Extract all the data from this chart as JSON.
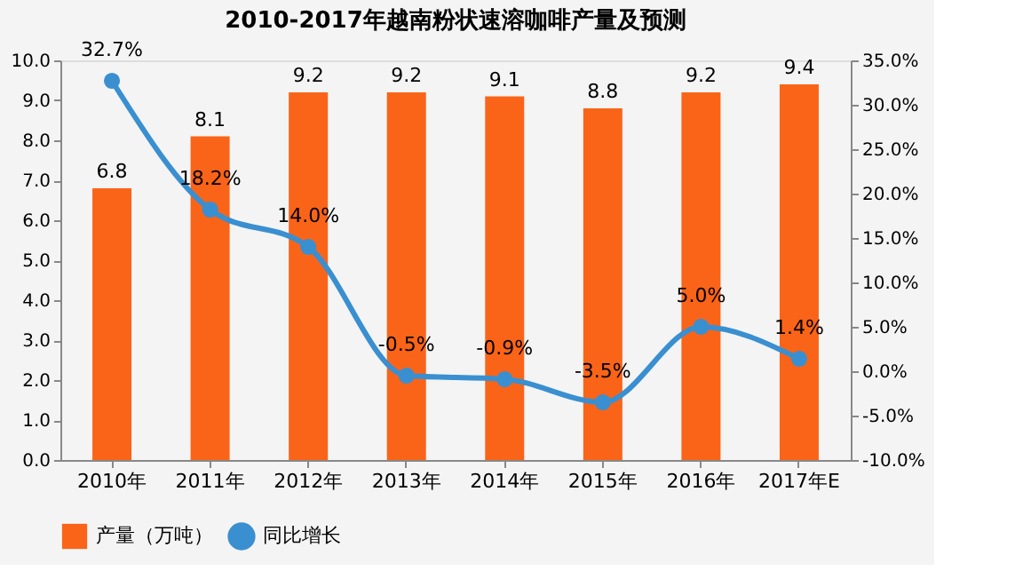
{
  "chart_data": {
    "type": "bar",
    "title": "2010-2017年越南粉状速溶咖啡产量及预测",
    "categories": [
      "2010年",
      "2011年",
      "2012年",
      "2013年",
      "2014年",
      "2015年",
      "2016年",
      "2017年E"
    ],
    "series": [
      {
        "name": "产量（万吨）",
        "color": "#fa6418",
        "values": [
          6.8,
          8.1,
          9.2,
          9.2,
          9.1,
          8.8,
          9.2,
          9.4
        ],
        "data_labels": true
      },
      {
        "name": "同比增长",
        "type": "line",
        "axis": "y2",
        "color": "#3a8fd0",
        "marker": "circle",
        "line_style": "solid",
        "values": [
          32.7,
          18.2,
          14.0,
          -0.5,
          -0.9,
          -3.5,
          5.0,
          1.4
        ],
        "value_labels": [
          "32.7%",
          "18.2%",
          "14.0%",
          "-0.5%",
          "-0.9%",
          "-3.5%",
          "5.0%",
          "1.4%"
        ]
      }
    ],
    "ylim": [
      0,
      10
    ],
    "yticks": [
      {
        "value": 0,
        "label": "0.0"
      },
      {
        "value": 1,
        "label": "1.0"
      },
      {
        "value": 2,
        "label": "2.0"
      },
      {
        "value": 3,
        "label": "3.0"
      },
      {
        "value": 4,
        "label": "4.0"
      },
      {
        "value": 5,
        "label": "5.0"
      },
      {
        "value": 6,
        "label": "6.0"
      },
      {
        "value": 7,
        "label": "7.0"
      },
      {
        "value": 8,
        "label": "8.0"
      },
      {
        "value": 9,
        "label": "9.0"
      },
      {
        "value": 10,
        "label": "10.0"
      }
    ],
    "y2lim": [
      -10,
      35
    ],
    "y2ticks": [
      {
        "value": -10,
        "label": "-10.0%"
      },
      {
        "value": -5,
        "label": "-5.0%"
      },
      {
        "value": 0,
        "label": "0.0%"
      },
      {
        "value": 5,
        "label": "5.0%"
      },
      {
        "value": 10,
        "label": "10.0%"
      },
      {
        "value": 15,
        "label": "15.0%"
      },
      {
        "value": 20,
        "label": "20.0%"
      },
      {
        "value": 25,
        "label": "25.0%"
      },
      {
        "value": 30,
        "label": "30.0%"
      },
      {
        "value": 35,
        "label": "35.0%"
      }
    ],
    "legend": "bottom",
    "grid": false
  }
}
